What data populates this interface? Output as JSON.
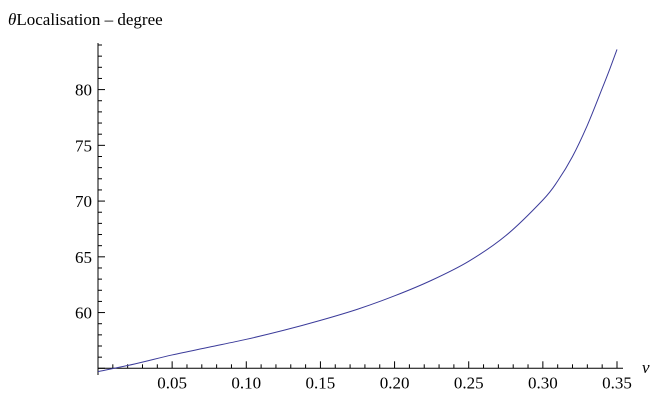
{
  "chart_data": {
    "type": "line",
    "title": "",
    "ylabel_symbol": "θ",
    "ylabel": "Localisation – degree",
    "xlabel": "ν",
    "xlim": [
      0.0,
      0.35
    ],
    "ylim": [
      54.4,
      84
    ],
    "x_ticks": [
      "0.05",
      "0.10",
      "0.15",
      "0.20",
      "0.25",
      "0.30",
      "0.35"
    ],
    "y_ticks": [
      "60",
      "65",
      "70",
      "75",
      "80"
    ],
    "grid": false,
    "line_color": "#3b3b9a",
    "series": [
      {
        "x": [
          0.0,
          0.025,
          0.05,
          0.075,
          0.1,
          0.125,
          0.15,
          0.175,
          0.2,
          0.225,
          0.25,
          0.275,
          0.3,
          0.31,
          0.32,
          0.33,
          0.34,
          0.345,
          0.35
        ],
        "values": [
          54.7,
          55.4,
          56.2,
          56.9,
          57.6,
          58.4,
          59.3,
          60.3,
          61.5,
          62.9,
          64.6,
          66.9,
          70.1,
          71.8,
          74.0,
          76.8,
          80.1,
          81.8,
          83.6
        ]
      }
    ]
  }
}
